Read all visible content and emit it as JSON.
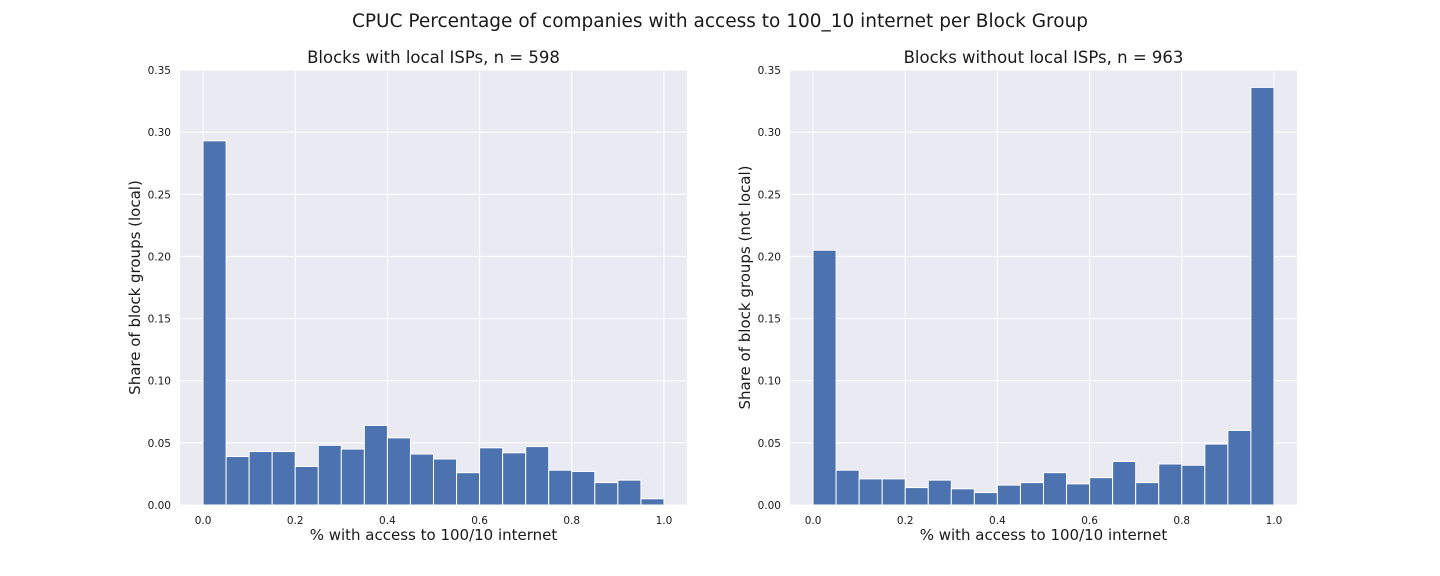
{
  "figure": {
    "suptitle": "CPUC Percentage of companies with access to 100_10 internet per Block Group"
  },
  "colors": {
    "bar": "#4c72b0",
    "axes_bg": "#eaeaf2",
    "grid": "#ffffff"
  },
  "chart_data": [
    {
      "type": "bar",
      "title": "Blocks with local ISPs, n = 598",
      "xlabel": "% with access to 100/10 internet",
      "ylabel": "Share of block groups (local)",
      "xlim": [
        -0.05,
        1.05
      ],
      "ylim": [
        0,
        0.35
      ],
      "xticks": [
        0.0,
        0.2,
        0.4,
        0.6,
        0.8,
        1.0
      ],
      "xtick_labels": [
        "0.0",
        "0.2",
        "0.4",
        "0.6",
        "0.8",
        "1.0"
      ],
      "yticks": [
        0.0,
        0.05,
        0.1,
        0.15,
        0.2,
        0.25,
        0.3,
        0.35
      ],
      "ytick_labels": [
        "0.00",
        "0.05",
        "0.10",
        "0.15",
        "0.20",
        "0.25",
        "0.30",
        "0.35"
      ],
      "grid": true,
      "bin_edges": [
        0.0,
        0.05,
        0.1,
        0.15,
        0.2,
        0.25,
        0.3,
        0.35,
        0.4,
        0.45,
        0.5,
        0.55,
        0.6,
        0.65,
        0.7,
        0.75,
        0.8,
        0.85,
        0.9,
        0.95,
        1.0
      ],
      "values": [
        0.293,
        0.039,
        0.043,
        0.043,
        0.031,
        0.048,
        0.045,
        0.064,
        0.054,
        0.041,
        0.037,
        0.026,
        0.046,
        0.042,
        0.047,
        0.028,
        0.027,
        0.018,
        0.02,
        0.005
      ]
    },
    {
      "type": "bar",
      "title": "Blocks without local ISPs, n = 963",
      "xlabel": "% with access to 100/10 internet",
      "ylabel": "Share of block groups (not local)",
      "xlim": [
        -0.05,
        1.05
      ],
      "ylim": [
        0,
        0.35
      ],
      "xticks": [
        0.0,
        0.2,
        0.4,
        0.6,
        0.8,
        1.0
      ],
      "xtick_labels": [
        "0.0",
        "0.2",
        "0.4",
        "0.6",
        "0.8",
        "1.0"
      ],
      "yticks": [
        0.0,
        0.05,
        0.1,
        0.15,
        0.2,
        0.25,
        0.3,
        0.35
      ],
      "ytick_labels": [
        "0.00",
        "0.05",
        "0.10",
        "0.15",
        "0.20",
        "0.25",
        "0.30",
        "0.35"
      ],
      "grid": true,
      "bin_edges": [
        0.0,
        0.05,
        0.1,
        0.15,
        0.2,
        0.25,
        0.3,
        0.35,
        0.4,
        0.45,
        0.5,
        0.55,
        0.6,
        0.65,
        0.7,
        0.75,
        0.8,
        0.85,
        0.9,
        0.95,
        1.0
      ],
      "values": [
        0.205,
        0.028,
        0.021,
        0.021,
        0.014,
        0.02,
        0.013,
        0.01,
        0.016,
        0.018,
        0.026,
        0.017,
        0.022,
        0.035,
        0.018,
        0.033,
        0.032,
        0.049,
        0.06,
        0.336
      ]
    }
  ]
}
